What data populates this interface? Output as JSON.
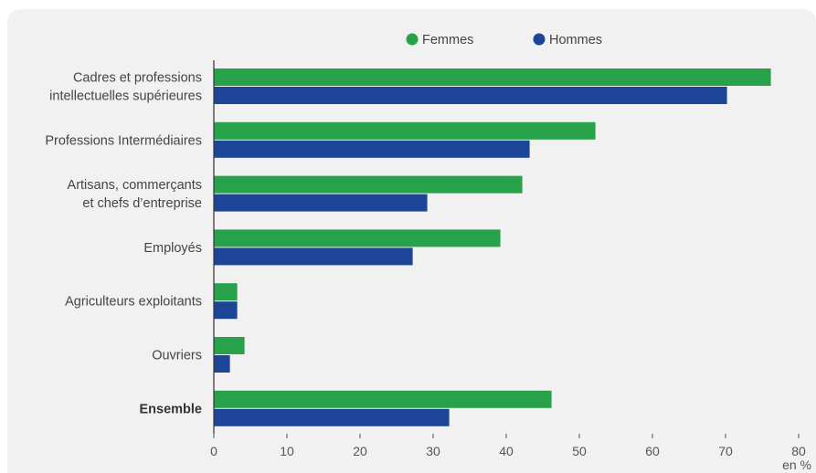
{
  "chart_data": {
    "type": "bar",
    "orientation": "horizontal",
    "categories": [
      [
        "Cadres et professions",
        "intellectuelles supérieures"
      ],
      [
        "Professions Intermédiaires"
      ],
      [
        "Artisans, commerçants",
        "et chefs d’entreprise"
      ],
      [
        "Employés"
      ],
      [
        "Agriculteurs exploitants"
      ],
      [
        "Ouvriers"
      ],
      [
        "Ensemble"
      ]
    ],
    "bold_categories": [
      "Ensemble"
    ],
    "series": [
      {
        "name": "Femmes",
        "color": "#27a24a",
        "values": [
          76.2,
          52.2,
          42.2,
          39.2,
          3.2,
          4.2,
          46.2
        ]
      },
      {
        "name": "Hommes",
        "color": "#1d4597",
        "values": [
          70.2,
          43.2,
          29.2,
          27.2,
          3.2,
          2.2,
          32.2
        ]
      }
    ],
    "xlim": [
      0,
      80
    ],
    "xticks": [
      0,
      10,
      20,
      30,
      40,
      50,
      60,
      70,
      80
    ],
    "unit_label": "en %",
    "legend_position": "top-center",
    "grid": false
  }
}
